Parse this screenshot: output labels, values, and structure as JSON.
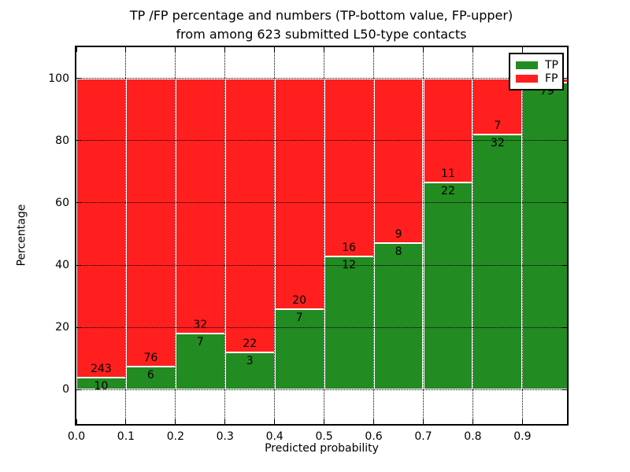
{
  "figure": {
    "title_line1": "TP /FP percentage and numbers (TP-bottom value, FP-upper)",
    "title_line2": "from among 623 submitted L50-type contacts"
  },
  "legend": {
    "items": [
      {
        "label": "TP",
        "color": "#228b22"
      },
      {
        "label": "FP",
        "color": "#ff1f1f"
      }
    ]
  },
  "chart_data": {
    "type": "bar",
    "stacked": true,
    "normalized_to_percent": true,
    "title": "TP /FP percentage and numbers (TP-bottom value, FP-upper) from among 623 submitted L50-type contacts",
    "xlabel": "Predicted probability",
    "ylabel": "Percentage",
    "total_contacts": 623,
    "xlim": [
      0.0,
      0.99
    ],
    "ylim": [
      -11,
      110
    ],
    "x_ticks": [
      0.0,
      0.1,
      0.2,
      0.3,
      0.4,
      0.5,
      0.6,
      0.7,
      0.8,
      0.9
    ],
    "x_tick_labels": [
      "0.0",
      "0.1",
      "0.2",
      "0.3",
      "0.4",
      "0.5",
      "0.6",
      "0.7",
      "0.8",
      "0.9"
    ],
    "y_ticks": [
      0,
      20,
      40,
      60,
      80,
      100
    ],
    "y_tick_labels": [
      "0",
      "20",
      "40",
      "60",
      "80",
      "100"
    ],
    "grid_style": "dotted",
    "legend_position": "upper right",
    "series_names": [
      "TP",
      "FP"
    ],
    "colors": {
      "tp": "#228b22",
      "fp": "#ff1f1f",
      "edge": "#ffffff"
    },
    "bins": [
      {
        "range": [
          0.0,
          0.1
        ],
        "tp": 10,
        "fp": 243,
        "tp_pct": 3.95
      },
      {
        "range": [
          0.1,
          0.2
        ],
        "tp": 6,
        "fp": 76,
        "tp_pct": 7.32
      },
      {
        "range": [
          0.2,
          0.3
        ],
        "tp": 7,
        "fp": 32,
        "tp_pct": 17.95
      },
      {
        "range": [
          0.3,
          0.4
        ],
        "tp": 3,
        "fp": 22,
        "tp_pct": 12.0
      },
      {
        "range": [
          0.4,
          0.5
        ],
        "tp": 7,
        "fp": 20,
        "tp_pct": 25.93
      },
      {
        "range": [
          0.5,
          0.6
        ],
        "tp": 12,
        "fp": 16,
        "tp_pct": 42.86
      },
      {
        "range": [
          0.6,
          0.7
        ],
        "tp": 8,
        "fp": 9,
        "tp_pct": 47.06
      },
      {
        "range": [
          0.7,
          0.8
        ],
        "tp": 22,
        "fp": 11,
        "tp_pct": 66.67
      },
      {
        "range": [
          0.8,
          0.9
        ],
        "tp": 32,
        "fp": 7,
        "tp_pct": 82.05
      },
      {
        "range": [
          0.9,
          1.0
        ],
        "tp": 79,
        "fp": 1,
        "tp_pct": 98.75,
        "fp_label_visible": false
      }
    ]
  }
}
